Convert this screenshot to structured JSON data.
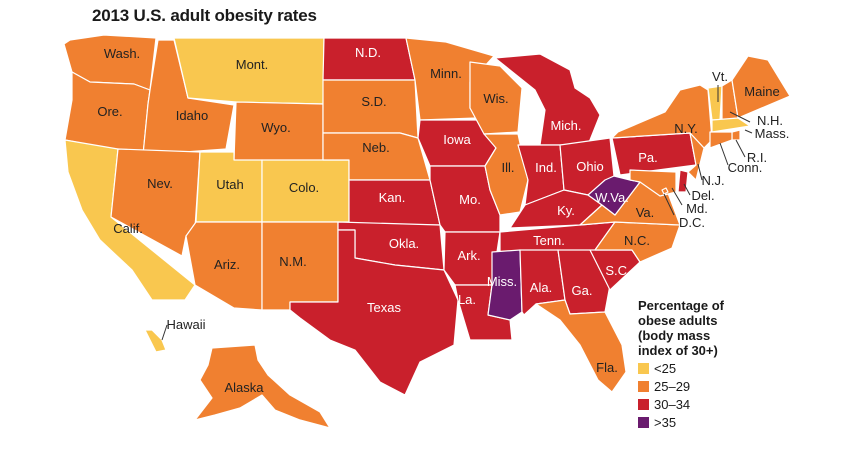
{
  "title": "2013 U.S. adult obesity rates",
  "legend": {
    "title": "Percentage of obese adults (body mass index of 30+)",
    "bins": [
      {
        "label": "<25",
        "color": "#f9c74f"
      },
      {
        "label": "25–29",
        "color": "#f08030"
      },
      {
        "label": "30–34",
        "color": "#c9202c"
      },
      {
        "label": ">35",
        "color": "#6a1b6e"
      }
    ]
  },
  "states": [
    {
      "id": "WA",
      "label": "Wash.",
      "bin": 1
    },
    {
      "id": "OR",
      "label": "Ore.",
      "bin": 1
    },
    {
      "id": "CA",
      "label": "Calif.",
      "bin": 0
    },
    {
      "id": "ID",
      "label": "Idaho",
      "bin": 1
    },
    {
      "id": "NV",
      "label": "Nev.",
      "bin": 1
    },
    {
      "id": "MT",
      "label": "Mont.",
      "bin": 0
    },
    {
      "id": "WY",
      "label": "Wyo.",
      "bin": 1
    },
    {
      "id": "UT",
      "label": "Utah",
      "bin": 0
    },
    {
      "id": "CO",
      "label": "Colo.",
      "bin": 0
    },
    {
      "id": "AZ",
      "label": "Ariz.",
      "bin": 1
    },
    {
      "id": "NM",
      "label": "N.M.",
      "bin": 1
    },
    {
      "id": "ND",
      "label": "N.D.",
      "bin": 2
    },
    {
      "id": "SD",
      "label": "S.D.",
      "bin": 1
    },
    {
      "id": "NE",
      "label": "Neb.",
      "bin": 1
    },
    {
      "id": "KS",
      "label": "Kan.",
      "bin": 2
    },
    {
      "id": "OK",
      "label": "Okla.",
      "bin": 2
    },
    {
      "id": "TX",
      "label": "Texas",
      "bin": 2
    },
    {
      "id": "MN",
      "label": "Minn.",
      "bin": 1
    },
    {
      "id": "IA",
      "label": "Iowa",
      "bin": 2
    },
    {
      "id": "MO",
      "label": "Mo.",
      "bin": 2
    },
    {
      "id": "AR",
      "label": "Ark.",
      "bin": 2
    },
    {
      "id": "LA",
      "label": "La.",
      "bin": 2
    },
    {
      "id": "WI",
      "label": "Wis.",
      "bin": 1
    },
    {
      "id": "IL",
      "label": "Ill.",
      "bin": 1
    },
    {
      "id": "MI",
      "label": "Mich.",
      "bin": 2
    },
    {
      "id": "IN",
      "label": "Ind.",
      "bin": 2
    },
    {
      "id": "OH",
      "label": "Ohio",
      "bin": 2
    },
    {
      "id": "KY",
      "label": "Ky.",
      "bin": 2
    },
    {
      "id": "TN",
      "label": "Tenn.",
      "bin": 2
    },
    {
      "id": "MS",
      "label": "Miss.",
      "bin": 3
    },
    {
      "id": "AL",
      "label": "Ala.",
      "bin": 2
    },
    {
      "id": "GA",
      "label": "Ga.",
      "bin": 2
    },
    {
      "id": "FL",
      "label": "Fla.",
      "bin": 1
    },
    {
      "id": "SC",
      "label": "S.C.",
      "bin": 2
    },
    {
      "id": "NC",
      "label": "N.C.",
      "bin": 1
    },
    {
      "id": "VA",
      "label": "Va.",
      "bin": 1
    },
    {
      "id": "WV",
      "label": "W.Va.",
      "bin": 3
    },
    {
      "id": "PA",
      "label": "Pa.",
      "bin": 2
    },
    {
      "id": "NY",
      "label": "N.Y.",
      "bin": 1
    },
    {
      "id": "VT",
      "label": "Vt.",
      "bin": 0
    },
    {
      "id": "NH",
      "label": "N.H.",
      "bin": 1
    },
    {
      "id": "ME",
      "label": "Maine",
      "bin": 1
    },
    {
      "id": "MA",
      "label": "Mass.",
      "bin": 0
    },
    {
      "id": "RI",
      "label": "R.I.",
      "bin": 1
    },
    {
      "id": "CT",
      "label": "Conn.",
      "bin": 1
    },
    {
      "id": "NJ",
      "label": "N.J.",
      "bin": 1
    },
    {
      "id": "DE",
      "label": "Del.",
      "bin": 2
    },
    {
      "id": "MD",
      "label": "Md.",
      "bin": 1
    },
    {
      "id": "DC",
      "label": "D.C.",
      "bin": 1
    },
    {
      "id": "AK",
      "label": "Alaska",
      "bin": 1
    },
    {
      "id": "HI",
      "label": "Hawaii",
      "bin": 0
    }
  ]
}
